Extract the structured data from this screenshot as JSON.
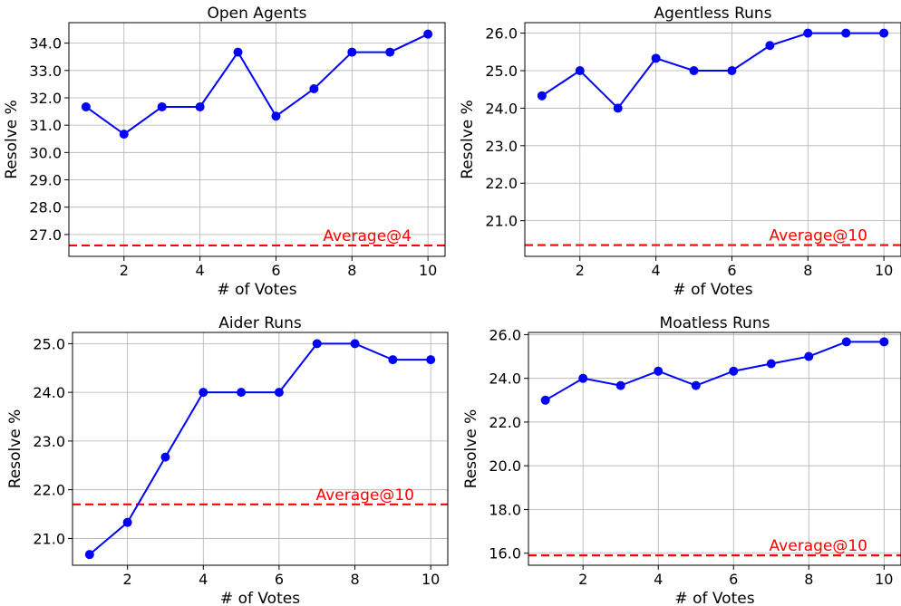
{
  "chart_data": [
    {
      "type": "line",
      "title": "Open Agents",
      "xlabel": "# of Votes",
      "ylabel": "Resolve %",
      "x": [
        1,
        2,
        3,
        4,
        5,
        6,
        7,
        8,
        9,
        10
      ],
      "series": [
        {
          "values": [
            31.67,
            30.67,
            31.67,
            31.67,
            33.67,
            31.33,
            32.33,
            33.67,
            33.67,
            34.33
          ],
          "color": "#0000ff"
        }
      ],
      "reference_line": {
        "label": "Average@4",
        "value": 26.6,
        "color": "#ff0000",
        "style": "dashed"
      },
      "xlim": [
        0.55,
        10.45
      ],
      "ylim": [
        26.2,
        34.75
      ],
      "xticks": [
        2,
        4,
        6,
        8,
        10
      ],
      "yticks": [
        27.0,
        28.0,
        29.0,
        30.0,
        31.0,
        32.0,
        33.0,
        34.0
      ],
      "ytick_labels": [
        "27.0",
        "28.0",
        "29.0",
        "30.0",
        "31.0",
        "32.0",
        "33.0",
        "34.0"
      ],
      "grid": true
    },
    {
      "type": "line",
      "title": "Agentless Runs",
      "xlabel": "# of Votes",
      "ylabel": "Resolve %",
      "x": [
        1,
        2,
        3,
        4,
        5,
        6,
        7,
        8,
        9,
        10
      ],
      "series": [
        {
          "values": [
            24.33,
            25.0,
            24.0,
            25.33,
            25.0,
            25.0,
            25.67,
            26.0,
            26.0,
            26.0
          ],
          "color": "#0000ff"
        }
      ],
      "reference_line": {
        "label": "Average@10",
        "value": 20.35,
        "color": "#ff0000",
        "style": "dashed"
      },
      "xlim": [
        0.55,
        10.45
      ],
      "ylim": [
        20.05,
        26.28
      ],
      "xticks": [
        2,
        4,
        6,
        8,
        10
      ],
      "yticks": [
        21.0,
        22.0,
        23.0,
        24.0,
        25.0,
        26.0
      ],
      "ytick_labels": [
        "21.0",
        "22.0",
        "23.0",
        "24.0",
        "25.0",
        "26.0"
      ],
      "grid": true
    },
    {
      "type": "line",
      "title": "Aider Runs",
      "xlabel": "# of Votes",
      "ylabel": "Resolve %",
      "x": [
        1,
        2,
        3,
        4,
        5,
        6,
        7,
        8,
        9,
        10
      ],
      "series": [
        {
          "values": [
            20.67,
            21.33,
            22.67,
            24.0,
            24.0,
            24.0,
            25.0,
            25.0,
            24.67,
            24.67
          ],
          "color": "#0000ff"
        }
      ],
      "reference_line": {
        "label": "Average@10",
        "value": 21.7,
        "color": "#ff0000",
        "style": "dashed"
      },
      "xlim": [
        0.55,
        10.45
      ],
      "ylim": [
        20.45,
        25.23
      ],
      "xticks": [
        2,
        4,
        6,
        8,
        10
      ],
      "yticks": [
        21.0,
        22.0,
        23.0,
        24.0,
        25.0
      ],
      "ytick_labels": [
        "21.0",
        "22.0",
        "23.0",
        "24.0",
        "25.0"
      ],
      "grid": true
    },
    {
      "type": "line",
      "title": "Moatless Runs",
      "xlabel": "# of Votes",
      "ylabel": "Resolve %",
      "x": [
        1,
        2,
        3,
        4,
        5,
        6,
        7,
        8,
        9,
        10
      ],
      "series": [
        {
          "values": [
            23.0,
            24.0,
            23.67,
            24.33,
            23.67,
            24.33,
            24.67,
            25.0,
            25.67,
            25.67
          ],
          "color": "#0000ff"
        }
      ],
      "reference_line": {
        "label": "Average@10",
        "value": 15.9,
        "color": "#ff0000",
        "style": "dashed"
      },
      "xlim": [
        0.55,
        10.45
      ],
      "ylim": [
        15.45,
        26.1
      ],
      "xticks": [
        2,
        4,
        6,
        8,
        10
      ],
      "yticks": [
        16.0,
        18.0,
        20.0,
        22.0,
        24.0,
        26.0
      ],
      "ytick_labels": [
        "16.0",
        "18.0",
        "20.0",
        "22.0",
        "24.0",
        "26.0"
      ],
      "grid": true
    }
  ]
}
